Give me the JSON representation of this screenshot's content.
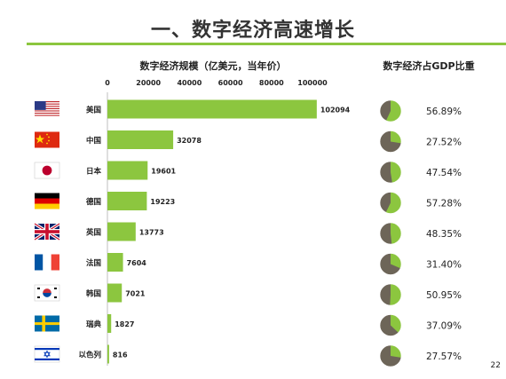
{
  "slide": {
    "title": "一、数字经济高速增长",
    "page_number": "22"
  },
  "colors": {
    "accent": "#8cc63f",
    "pie_other": "#6d6558"
  },
  "chart_data": [
    {
      "type": "bar",
      "orientation": "horizontal",
      "title": "数字经济规模（亿美元，当年价）",
      "categories": [
        "美国",
        "中国",
        "日本",
        "德国",
        "英国",
        "法国",
        "韩国",
        "瑞典",
        "以色列"
      ],
      "values": [
        102094,
        32078,
        19601,
        19223,
        13773,
        7604,
        7021,
        1827,
        816
      ],
      "value_labels": [
        "102094",
        "32078",
        "19601",
        "19223",
        "13773",
        "7604",
        "7021",
        "1827",
        "816"
      ],
      "xticks": [
        "0",
        "20000",
        "40000",
        "60000",
        "80000",
        "100000"
      ],
      "xlim": [
        0,
        100000
      ],
      "grid": false
    },
    {
      "type": "pie",
      "title": "数字经济占GDP比重",
      "categories": [
        "美国",
        "中国",
        "日本",
        "德国",
        "英国",
        "法国",
        "韩国",
        "瑞典",
        "以色列"
      ],
      "values": [
        56.89,
        27.52,
        47.54,
        57.28,
        48.35,
        31.4,
        50.95,
        37.09,
        27.57
      ],
      "value_labels": [
        "56.89%",
        "27.52%",
        "47.54%",
        "57.28%",
        "48.35%",
        "31.40%",
        "50.95%",
        "37.09%",
        "27.57%"
      ]
    }
  ],
  "flags": [
    "us-flag-icon",
    "cn-flag-icon",
    "jp-flag-icon",
    "de-flag-icon",
    "gb-flag-icon",
    "fr-flag-icon",
    "kr-flag-icon",
    "se-flag-icon",
    "il-flag-icon"
  ]
}
